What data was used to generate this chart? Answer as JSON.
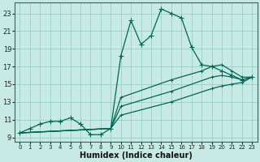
{
  "xlabel": "Humidex (Indice chaleur)",
  "background_color": "#c8eae4",
  "grid_color": "#9acec8",
  "line_color": "#006655",
  "xlim": [
    -0.5,
    23.5
  ],
  "ylim": [
    8.5,
    24.2
  ],
  "xticks": [
    0,
    1,
    2,
    3,
    4,
    5,
    6,
    7,
    8,
    9,
    10,
    11,
    12,
    13,
    14,
    15,
    16,
    17,
    18,
    19,
    20,
    21,
    22,
    23
  ],
  "yticks": [
    9,
    11,
    13,
    15,
    17,
    19,
    21,
    23
  ],
  "line1_x": [
    0,
    1,
    2,
    3,
    4,
    5,
    6,
    7,
    8,
    9,
    10,
    11,
    12,
    13,
    14,
    15,
    16,
    17,
    18,
    19,
    20,
    21,
    22,
    23
  ],
  "line1_y": [
    9.5,
    10.0,
    10.5,
    10.8,
    10.8,
    11.2,
    10.5,
    9.3,
    9.3,
    10.0,
    18.2,
    22.2,
    19.5,
    20.5,
    23.5,
    23.0,
    22.5,
    19.2,
    17.2,
    17.0,
    16.5,
    16.0,
    15.5,
    15.8
  ],
  "line2_x": [
    0,
    9,
    10,
    15,
    18,
    19,
    20,
    21,
    22,
    23
  ],
  "line2_y": [
    9.5,
    10.0,
    13.5,
    15.5,
    16.5,
    17.0,
    17.2,
    16.5,
    15.8,
    15.8
  ],
  "line3_x": [
    0,
    9,
    10,
    15,
    19,
    20,
    21,
    22,
    23
  ],
  "line3_y": [
    9.5,
    10.0,
    12.5,
    14.2,
    15.8,
    16.0,
    15.8,
    15.5,
    15.8
  ],
  "line4_x": [
    0,
    9,
    10,
    15,
    19,
    20,
    21,
    22,
    23
  ],
  "line4_y": [
    9.5,
    10.0,
    11.5,
    13.0,
    14.5,
    14.8,
    15.0,
    15.2,
    15.8
  ]
}
